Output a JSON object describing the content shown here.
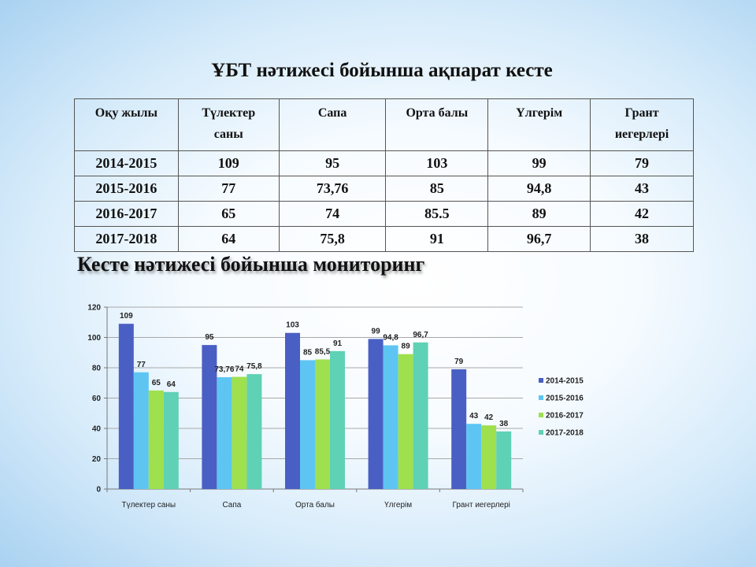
{
  "title": "ҰБТ нәтижесі  бойынша ақпарат кесте",
  "table": {
    "headers": [
      "Оқу жылы",
      "Түлектер саны",
      "Сапа",
      "Орта балы",
      "Үлгерім",
      "Грант иегерлері"
    ],
    "rows": [
      [
        "2014-2015",
        "109",
        "95",
        "103",
        "99",
        "79"
      ],
      [
        "2015-2016",
        "77",
        "73,76",
        "85",
        "94,8",
        "43"
      ],
      [
        "2016-2017",
        "65",
        "74",
        "85.5",
        "89",
        "42"
      ],
      [
        "2017-2018",
        "64",
        "75,8",
        "91",
        "96,7",
        "38"
      ]
    ]
  },
  "subtitle": "Кесте нәтижесі бойынша мониторинг",
  "chart_data": {
    "type": "bar",
    "categories": [
      "Түлектер саны",
      "Сапа",
      "Орта балы",
      "Үлгерім",
      "Грант иегерлері"
    ],
    "series": [
      {
        "name": "2014-2015",
        "values": [
          109,
          95,
          103,
          99,
          79
        ],
        "labels": [
          "109",
          "95",
          "103",
          "99",
          "79"
        ],
        "color": "#4a5fc4"
      },
      {
        "name": "2015-2016",
        "values": [
          77,
          73.76,
          85,
          94.8,
          43
        ],
        "labels": [
          "77",
          "73,76",
          "85",
          "94,8",
          "43"
        ],
        "color": "#5ec5f2"
      },
      {
        "name": "2016-2017",
        "values": [
          65,
          74,
          85.5,
          89,
          42
        ],
        "labels": [
          "65",
          "74",
          "85,5",
          "89",
          "42"
        ],
        "color": "#9ee04e"
      },
      {
        "name": "2017-2018",
        "values": [
          64,
          75.8,
          91,
          96.7,
          38
        ],
        "labels": [
          "64",
          "75,8",
          "91",
          "96,7",
          "38"
        ],
        "color": "#5fd1b5"
      }
    ],
    "yticks": [
      0,
      20,
      40,
      60,
      80,
      100,
      120
    ],
    "ylim": [
      0,
      120
    ],
    "grid": true,
    "legend": "right"
  }
}
